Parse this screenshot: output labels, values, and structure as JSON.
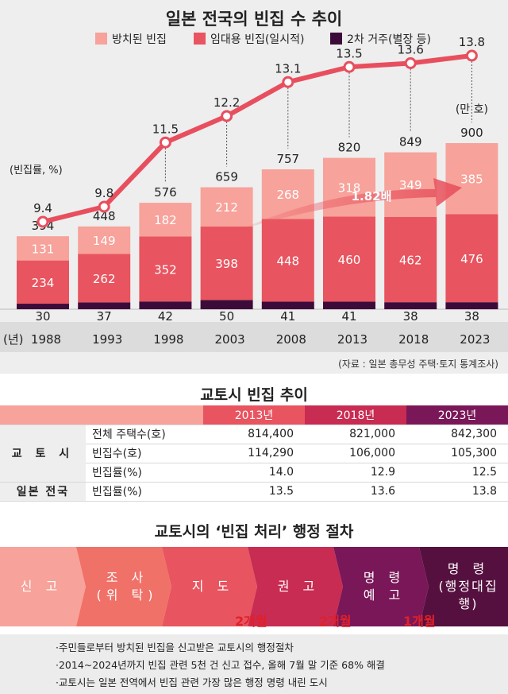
{
  "chart_data": {
    "type": "bar",
    "title": "일본 전국의 빈집 수 추이",
    "legend_position": "top",
    "left_unit_label": "(빈집률, %)",
    "right_unit_label": "(만 호)",
    "year_unit_label": "(년)",
    "categories": [
      "1988",
      "1993",
      "1998",
      "2003",
      "2008",
      "2013",
      "2018",
      "2023"
    ],
    "totals": [
      "394",
      "448",
      "576",
      "659",
      "757",
      "820",
      "849",
      "900"
    ],
    "series": [
      {
        "name": "방치된 빈집",
        "color": "#f7a29a",
        "values": [
          131,
          149,
          182,
          212,
          268,
          318,
          349,
          385
        ]
      },
      {
        "name": "임대용 빈집(일시적)",
        "color": "#e8545f",
        "values": [
          234,
          262,
          352,
          398,
          448,
          460,
          462,
          476
        ]
      },
      {
        "name": "2차 거주(별장 등)",
        "color": "#3d0b3a",
        "values": [
          30,
          37,
          42,
          50,
          41,
          41,
          38,
          38
        ]
      }
    ],
    "rate_line": {
      "values": [
        9.4,
        9.8,
        11.5,
        12.2,
        13.1,
        13.5,
        13.6,
        13.8
      ],
      "labels": [
        "9.4",
        "9.8",
        "11.5",
        "12.2",
        "13.1",
        "13.5",
        "13.6",
        "13.8"
      ],
      "color": "#e84f5e"
    },
    "annotation": "1.82배",
    "source": "(자료 : 일본 총무성 주택·토지 통계조사)"
  },
  "kyoto_table": {
    "title": "교토시 빈집 추이",
    "years": [
      "2013년",
      "2018년",
      "2023년"
    ],
    "group_kyoto": "교 토 시",
    "group_japan": "일본 전국",
    "rows": [
      {
        "label": "전체 주택수(호)",
        "values": [
          "814,400",
          "821,000",
          "842,300"
        ]
      },
      {
        "label": "빈집수(호)",
        "values": [
          "114,290",
          "106,000",
          "105,300"
        ]
      },
      {
        "label": "빈집률(%)",
        "values": [
          "14.0",
          "12.9",
          "12.5"
        ]
      }
    ],
    "japan_row": {
      "label": "빈집률(%)",
      "values": [
        "13.5",
        "13.6",
        "13.8"
      ]
    }
  },
  "procedure": {
    "title": "교토시의 ‘빈집 처리’ 행정 절차",
    "steps": [
      {
        "line1": "신 고",
        "line2": "",
        "color": "#f7a29a"
      },
      {
        "line1": "조 사",
        "line2": "(위 탁)",
        "color": "#f07168"
      },
      {
        "line1": "지 도",
        "line2": "",
        "color": "#e8545f"
      },
      {
        "line1": "권 고",
        "line2": "",
        "color": "#c82c52"
      },
      {
        "line1": "명 령",
        "line2": "예 고",
        "color": "#7a1758"
      },
      {
        "line1": "명 령",
        "line2": "(행정대집행)",
        "color": "#56103f"
      }
    ],
    "durations": [
      "2개월",
      "2개월",
      "1개월"
    ]
  },
  "notes": [
    "·주민들로부터 방치된 빈집을 신고받은 교토시의 행정절차",
    "·2014~2024년까지 빈집 관련 5천 건 신고 접수, 올해 7월 말 기준 68% 해결",
    "·교토시는 일본 전역에서 빈집 관련 가장 많은 행정 명령 내린 도시"
  ]
}
